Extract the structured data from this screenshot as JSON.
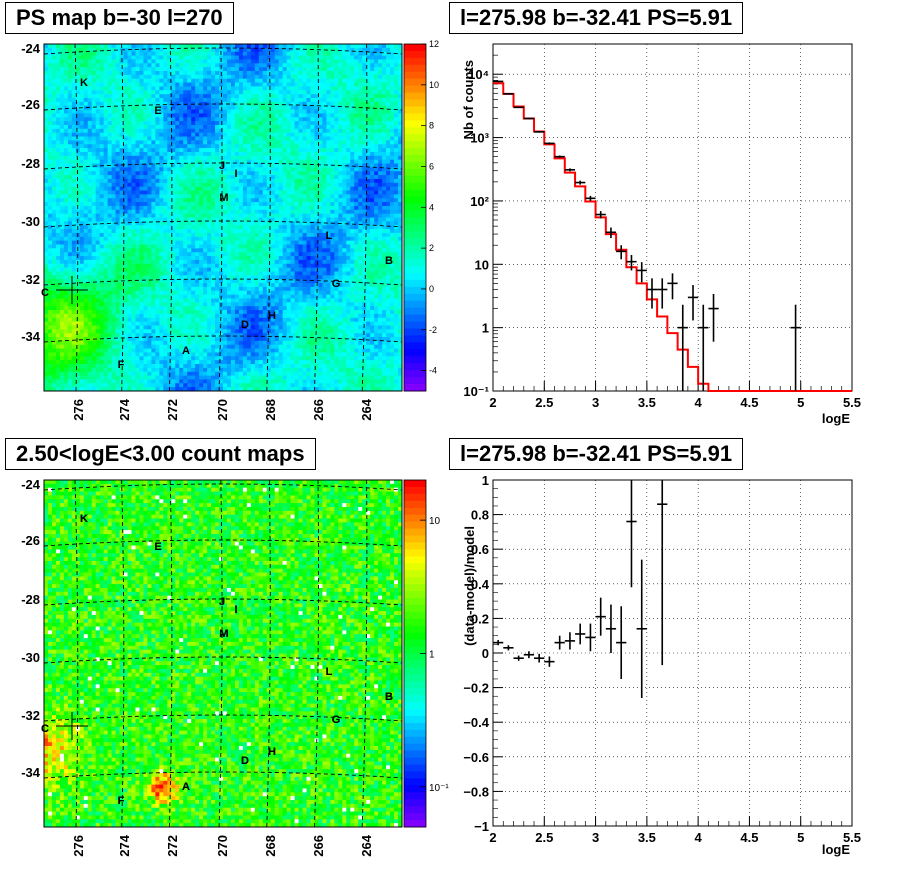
{
  "panels": {
    "ps_map": {
      "title": "PS map b=-30 l=270",
      "yticks": [
        "-24",
        "-26",
        "-28",
        "-30",
        "-32",
        "-34"
      ],
      "xticks": [
        "276",
        "274",
        "272",
        "270",
        "268",
        "266",
        "264"
      ],
      "colorbar_ticks": [
        "12",
        "10",
        "8",
        "6",
        "4",
        "2",
        "0",
        "-2",
        "-4"
      ],
      "colorbar_range": [
        -5,
        12
      ],
      "palette": "rainbow",
      "sources": [
        "K",
        "E",
        "J",
        "I",
        "M",
        "L",
        "B",
        "C",
        "G",
        "H",
        "D",
        "A",
        "F"
      ]
    },
    "count_map": {
      "title": "2.50<logE<3.00 count maps",
      "yticks": [
        "-24",
        "-26",
        "-28",
        "-30",
        "-32",
        "-34"
      ],
      "xticks": [
        "276",
        "274",
        "272",
        "270",
        "268",
        "266",
        "264"
      ],
      "colorbar_ticks": [
        "10",
        "1",
        "10⁻¹"
      ],
      "colorbar_scale": "log",
      "palette": "rainbow",
      "sources": [
        "K",
        "E",
        "J",
        "I",
        "M",
        "L",
        "B",
        "C",
        "G",
        "H",
        "D",
        "A",
        "F"
      ]
    },
    "spectrum": {
      "title": "l=275.98 b=-32.41 PS=5.91",
      "xlabel": "logE",
      "ylabel": "Nb of counts",
      "xticks": [
        "2",
        "2.5",
        "3",
        "3.5",
        "4",
        "4.5",
        "5",
        "5.5"
      ],
      "yticks": [
        "10⁴",
        "10³",
        "10²",
        "10",
        "1",
        "10⁻¹"
      ],
      "model_color": "#ff0000"
    },
    "residual": {
      "title": "l=275.98 b=-32.41 PS=5.91",
      "xlabel": "logE",
      "ylabel": "(data-model)/model",
      "xticks": [
        "2",
        "2.5",
        "3",
        "3.5",
        "4",
        "4.5",
        "5",
        "5.5"
      ],
      "yticks": [
        "1",
        "0.8",
        "0.6",
        "0.4",
        "0.2",
        "0",
        "−0.2",
        "−0.4",
        "−0.6",
        "−0.8",
        "−1"
      ]
    }
  },
  "chart_data": [
    {
      "type": "heatmap",
      "title": "PS map b=-30 l=270",
      "xlabel": "",
      "ylabel": "",
      "xlim": [
        277.5,
        262.5
      ],
      "ylim": [
        -36,
        -23.5
      ],
      "zlim": [
        -5,
        12
      ],
      "sources": [
        {
          "label": "K",
          "l": 276.6,
          "b": -25.5
        },
        {
          "label": "E",
          "l": 271.8,
          "b": -26.3
        },
        {
          "label": "J",
          "l": 270.0,
          "b": -28.4
        },
        {
          "label": "I",
          "l": 269.4,
          "b": -28.7
        },
        {
          "label": "M",
          "l": 270.0,
          "b": -29.5
        },
        {
          "label": "L",
          "l": 265.5,
          "b": -30.7
        },
        {
          "label": "B",
          "l": 262.8,
          "b": -31.8
        },
        {
          "label": "C",
          "l": 276.0,
          "b": -32.4
        },
        {
          "label": "G",
          "l": 265.2,
          "b": -32.3
        },
        {
          "label": "H",
          "l": 268.2,
          "b": -33.6
        },
        {
          "label": "D",
          "l": 269.2,
          "b": -33.8
        },
        {
          "label": "A",
          "l": 271.4,
          "b": -34.6
        },
        {
          "label": "F",
          "l": 274.0,
          "b": -35.3
        }
      ]
    },
    {
      "type": "heatmap",
      "title": "2.50<logE<3.00 count maps",
      "xlabel": "",
      "ylabel": "",
      "xlim": [
        277.5,
        262.5
      ],
      "ylim": [
        -36,
        -23.5
      ],
      "zscale": "log",
      "zlim": [
        0.05,
        20
      ],
      "hotspots": [
        {
          "label": "A",
          "l": 272.5,
          "b": -34.6
        },
        {
          "label": "C",
          "l": 277.0,
          "b": -33.2
        }
      ]
    },
    {
      "type": "line",
      "title": "l=275.98 b=-32.41 PS=5.91",
      "xlabel": "logE",
      "ylabel": "Nb of counts",
      "xlim": [
        2,
        5.5
      ],
      "ylim": [
        0.1,
        30000
      ],
      "yscale": "log",
      "grid": true,
      "series": [
        {
          "kind": "step",
          "bin_width": 0.1,
          "x": [
            2.0,
            2.1,
            2.2,
            2.3,
            2.4,
            2.5,
            2.6,
            2.7,
            2.8,
            2.9,
            3.0,
            3.1,
            3.2,
            3.3,
            3.4,
            3.5,
            3.6,
            3.7,
            3.8,
            3.9,
            4.0,
            4.1,
            4.2,
            4.3,
            4.4,
            4.5,
            4.6,
            4.7,
            4.8,
            4.9,
            5.0,
            5.1,
            5.2,
            5.3,
            5.4
          ],
          "y": [
            7200,
            4900,
            3100,
            2000,
            1250,
            780,
            470,
            280,
            170,
            98,
            55,
            30,
            17,
            9,
            5,
            2.8,
            1.5,
            0.82,
            0.45,
            0.24,
            0.13,
            0.1,
            0.1,
            0.1,
            0.1,
            0.1,
            0.1,
            0.1,
            0.1,
            0.1,
            0.1,
            0.1,
            0.1,
            0.1,
            0.1
          ]
        },
        {
          "kind": "errorbar",
          "x": [
            2.05,
            2.15,
            2.25,
            2.35,
            2.45,
            2.55,
            2.65,
            2.75,
            2.85,
            2.95,
            3.05,
            3.15,
            3.25,
            3.35,
            3.45,
            3.55,
            3.65,
            3.75,
            3.85,
            3.95,
            4.05,
            4.15,
            4.95
          ],
          "y": [
            7700,
            4900,
            3000,
            2000,
            1230,
            810,
            500,
            310,
            195,
            110,
            61,
            32,
            16,
            11,
            8,
            4,
            4,
            5,
            1,
            3,
            1,
            2,
            1
          ],
          "y_low": [
            7500,
            4830,
            2945,
            1955,
            1195,
            780,
            478,
            293,
            181,
            100,
            53,
            26,
            12,
            8,
            5.2,
            2,
            2,
            2.8,
            0.1,
            1.3,
            0.1,
            0.6,
            0.1
          ],
          "y_high": [
            7900,
            4970,
            3055,
            2045,
            1265,
            840,
            522,
            327,
            209,
            120,
            69,
            38,
            20,
            14,
            10.8,
            6,
            6,
            7.2,
            2.3,
            4.7,
            2.3,
            3.4,
            2.3
          ]
        }
      ]
    },
    {
      "type": "scatter",
      "title": "l=275.98 b=-32.41 PS=5.91",
      "xlabel": "logE",
      "ylabel": "(data-model)/model",
      "xlim": [
        2,
        5.5
      ],
      "ylim": [
        -1,
        1
      ],
      "grid": true,
      "x": [
        2.05,
        2.15,
        2.25,
        2.35,
        2.45,
        2.55,
        2.65,
        2.75,
        2.85,
        2.95,
        3.05,
        3.15,
        3.25,
        3.35,
        3.45,
        3.65
      ],
      "y": [
        0.06,
        0.03,
        -0.03,
        -0.01,
        -0.03,
        -0.05,
        0.06,
        0.07,
        0.11,
        0.09,
        0.21,
        0.14,
        0.06,
        0.76,
        0.14,
        0.86
      ],
      "y_err": [
        0.015,
        0.015,
        0.015,
        0.02,
        0.025,
        0.03,
        0.04,
        0.05,
        0.06,
        0.08,
        0.11,
        0.14,
        0.21,
        0.38,
        0.4,
        0.93
      ]
    }
  ]
}
